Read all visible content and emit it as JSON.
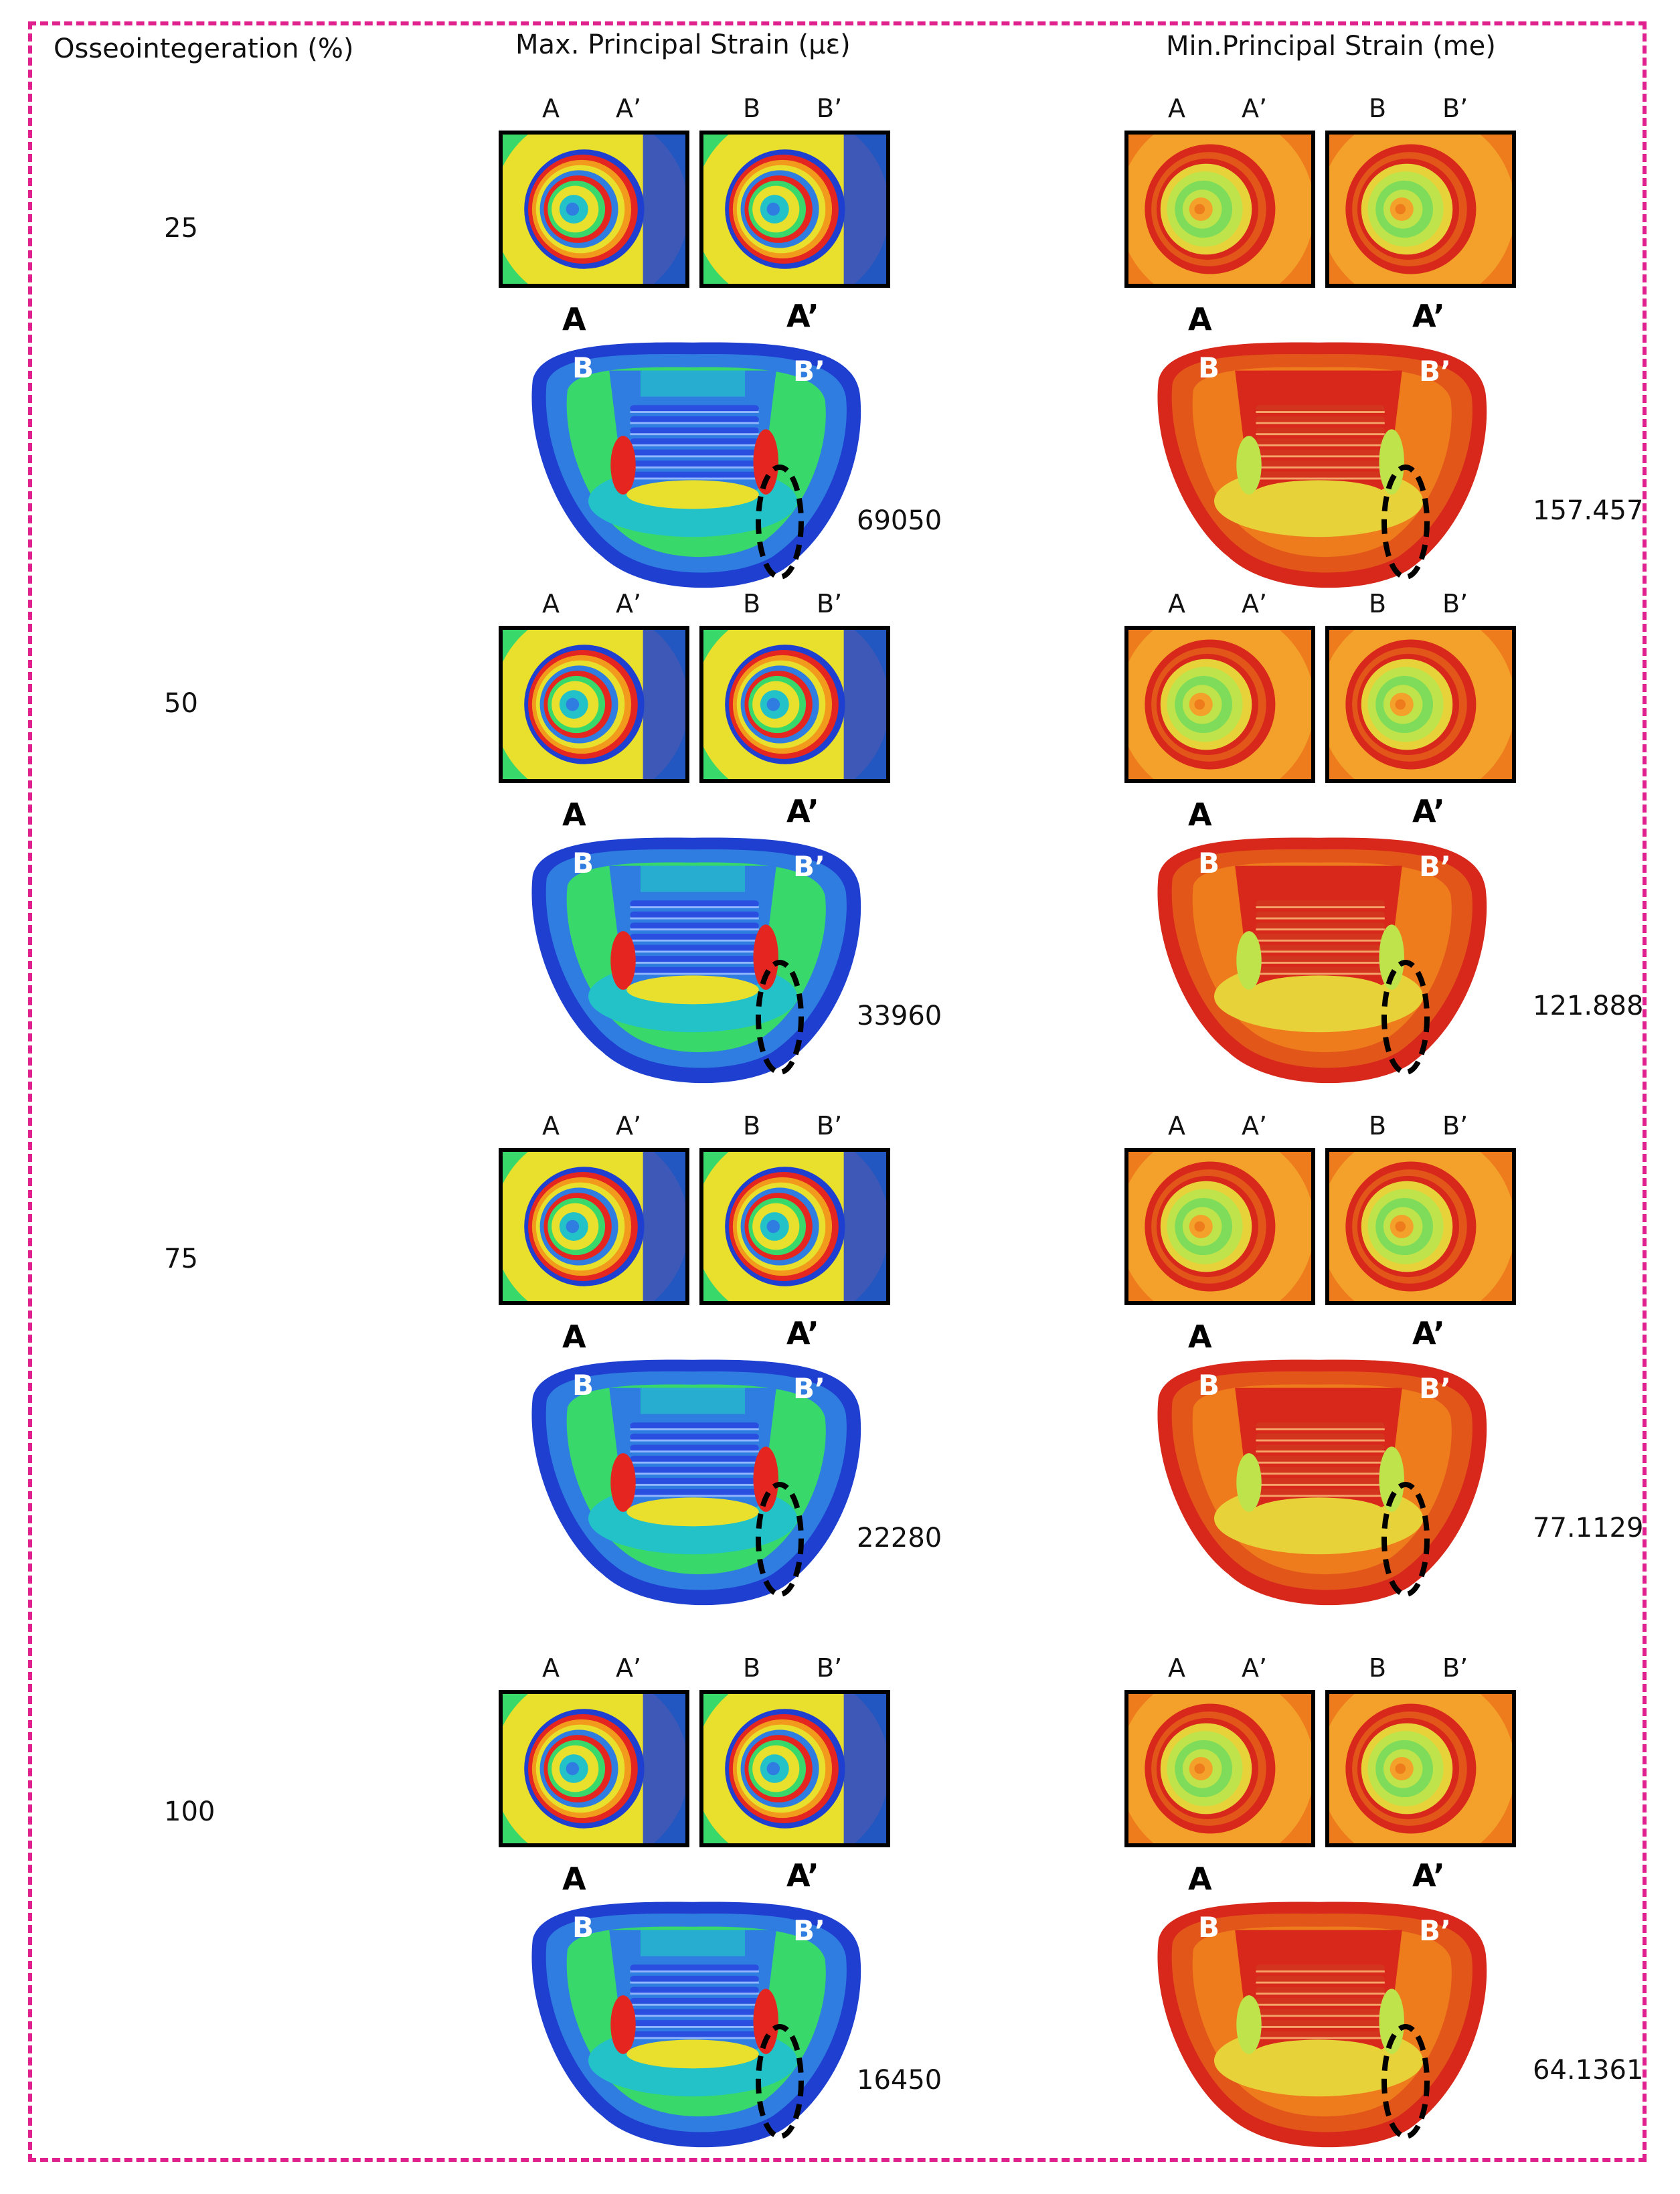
{
  "header": {
    "col0": "Osseointegeration (%)",
    "col1": "Max. Principal Strain (με)",
    "col2": "Min.Principal Strain (me)"
  },
  "labels": {
    "a": "A",
    "a_prime": "A’",
    "b": "B",
    "b_prime": "B’"
  },
  "rows": [
    {
      "percent": "25",
      "max_value": "69050",
      "min_value": "157.457"
    },
    {
      "percent": "50",
      "max_value": "33960",
      "min_value": "121.888"
    },
    {
      "percent": "75",
      "max_value": "22280",
      "min_value": "77.1129"
    },
    {
      "percent": "100",
      "max_value": "16450",
      "min_value": "64.1361"
    }
  ],
  "colors": {
    "frame": "#e0208c",
    "max_scheme": [
      "#1e3fd0",
      "#2f7de0",
      "#23c2c8",
      "#38d86a",
      "#9be03a",
      "#e8e02c",
      "#f29a1c",
      "#e52620"
    ],
    "min_scheme": [
      "#d8281c",
      "#e2561a",
      "#ee7c1c",
      "#f3a12a",
      "#e8d23a",
      "#bfe34a",
      "#7fdc5a"
    ]
  }
}
